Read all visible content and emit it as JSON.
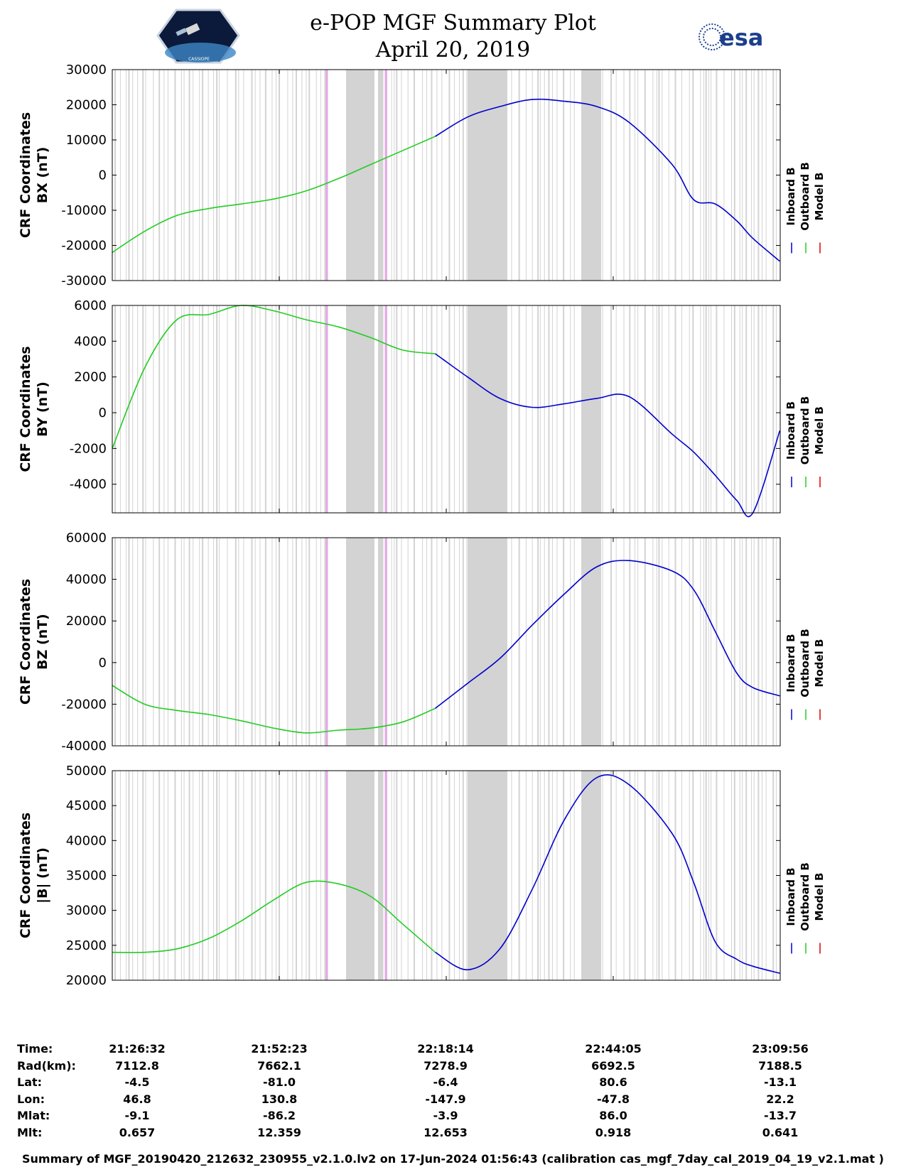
{
  "header": {
    "title_line1": "e-POP MGF Summary Plot",
    "title_line2": "April 20, 2019",
    "logo_left_text": "CASSIOPE",
    "logo_right_text": "esa"
  },
  "legend": [
    "Inboard B",
    "Outboard B",
    "Model B"
  ],
  "colors": {
    "inboard": "#0000cc",
    "outboard": "#22cc22",
    "model": "#dd0000",
    "bands": "#d3d3d3",
    "markers": "#e6a8e6"
  },
  "chart_data": [
    {
      "type": "line",
      "title": "",
      "ylabel_line1": "CRF Coordinates",
      "ylabel_line2": "BX (nT)",
      "xlabel": "Time",
      "xlim": [
        0,
        6204
      ],
      "ylim": [
        -30000,
        30000
      ],
      "yticks": [
        -30000,
        -20000,
        -10000,
        0,
        10000,
        20000,
        30000
      ],
      "ytick_labels": [
        "-30000",
        "-20000",
        "-10000",
        "0",
        "10000",
        "20000",
        "30000"
      ],
      "series": [
        {
          "name": "Outboard B",
          "x": [
            0,
            300,
            600,
            900,
            1200,
            1500,
            1800,
            2100,
            2400,
            2700,
            3000
          ],
          "values": [
            -22000,
            -16000,
            -11500,
            -9500,
            -8200,
            -6800,
            -4500,
            -1000,
            3000,
            7000,
            11000
          ]
        },
        {
          "name": "Inboard B",
          "x": [
            3000,
            3300,
            3600,
            3900,
            4200,
            4500,
            4800,
            5200,
            5400,
            5600,
            5800,
            5950,
            6200
          ],
          "values": [
            11000,
            16500,
            19500,
            21500,
            21000,
            19500,
            15000,
            3000,
            -7000,
            -8200,
            -13000,
            -18000,
            -24500
          ]
        }
      ]
    },
    {
      "type": "line",
      "title": "",
      "ylabel_line1": "CRF Coordinates",
      "ylabel_line2": "BY (nT)",
      "xlabel": "Time",
      "xlim": [
        0,
        6204
      ],
      "ylim": [
        -5600,
        6000
      ],
      "yticks": [
        -4000,
        -2000,
        0,
        2000,
        4000,
        6000
      ],
      "ytick_labels": [
        "-4000",
        "-2000",
        "0",
        "2000",
        "4000",
        "6000"
      ],
      "series": [
        {
          "name": "Outboard B",
          "x": [
            0,
            300,
            600,
            900,
            1200,
            1500,
            1800,
            2100,
            2400,
            2700,
            3000
          ],
          "values": [
            -2000,
            2500,
            5200,
            5500,
            6000,
            5700,
            5200,
            4800,
            4200,
            3500,
            3300
          ]
        },
        {
          "name": "Inboard B",
          "x": [
            3000,
            3300,
            3600,
            3900,
            4200,
            4500,
            4800,
            5200,
            5400,
            5600,
            5800,
            5950,
            6200
          ],
          "values": [
            3300,
            2000,
            800,
            300,
            500,
            800,
            900,
            -1200,
            -2200,
            -3500,
            -4900,
            -5600,
            -1000
          ]
        }
      ]
    },
    {
      "type": "line",
      "title": "",
      "ylabel_line1": "CRF Coordinates",
      "ylabel_line2": "BZ (nT)",
      "xlabel": "Time",
      "xlim": [
        0,
        6204
      ],
      "ylim": [
        -40000,
        60000
      ],
      "yticks": [
        -40000,
        -20000,
        0,
        20000,
        40000,
        60000
      ],
      "ytick_labels": [
        "-40000",
        "-20000",
        "0",
        "20000",
        "40000",
        "60000"
      ],
      "series": [
        {
          "name": "Outboard B",
          "x": [
            0,
            300,
            600,
            900,
            1200,
            1500,
            1800,
            2100,
            2400,
            2700,
            3000
          ],
          "values": [
            -11000,
            -20000,
            -23000,
            -25000,
            -28000,
            -31500,
            -33800,
            -32500,
            -31500,
            -28500,
            -22000
          ]
        },
        {
          "name": "Inboard B",
          "x": [
            3000,
            3300,
            3600,
            3900,
            4200,
            4500,
            4800,
            5200,
            5400,
            5600,
            5800,
            5950,
            6200
          ],
          "values": [
            -22000,
            -10000,
            2000,
            18000,
            33000,
            46000,
            49000,
            44000,
            35000,
            15000,
            -5000,
            -12000,
            -16000
          ]
        }
      ]
    },
    {
      "type": "line",
      "title": "",
      "ylabel_line1": "CRF Coordinates",
      "ylabel_line2": "|B| (nT)",
      "xlabel": "Time",
      "xlim": [
        0,
        6204
      ],
      "ylim": [
        20000,
        50000
      ],
      "yticks": [
        20000,
        25000,
        30000,
        35000,
        40000,
        45000,
        50000
      ],
      "ytick_labels": [
        "20000",
        "25000",
        "30000",
        "35000",
        "40000",
        "45000",
        "50000"
      ],
      "series": [
        {
          "name": "Outboard B",
          "x": [
            0,
            300,
            600,
            900,
            1200,
            1500,
            1800,
            2100,
            2400,
            2700,
            3000
          ],
          "values": [
            24000,
            24000,
            24500,
            26000,
            28500,
            31500,
            34000,
            33800,
            32000,
            28000,
            24000
          ]
        },
        {
          "name": "Inboard B",
          "x": [
            3000,
            3300,
            3600,
            3900,
            4200,
            4500,
            4800,
            5200,
            5400,
            5600,
            5800,
            5950,
            6200
          ],
          "values": [
            24000,
            21500,
            24500,
            33000,
            43000,
            49000,
            48000,
            41000,
            34000,
            25500,
            23000,
            22000,
            21000
          ]
        }
      ]
    }
  ],
  "ephemeris": {
    "labels": [
      "Time:",
      "Rad(km):",
      "Lat:",
      "Lon:",
      "Mlat:",
      "Mlt:"
    ],
    "columns": [
      [
        "21:26:32",
        "7112.8",
        "-4.5",
        "46.8",
        "-9.1",
        "0.657"
      ],
      [
        "21:52:23",
        "7662.1",
        "-81.0",
        "130.8",
        "-86.2",
        "12.359"
      ],
      [
        "22:18:14",
        "7278.9",
        "-6.4",
        "-147.9",
        "-3.9",
        "12.653"
      ],
      [
        "22:44:05",
        "6692.5",
        "80.6",
        "-47.8",
        "86.0",
        "0.918"
      ],
      [
        "23:09:56",
        "7188.5",
        "-13.1",
        "22.2",
        "-13.7",
        "0.641"
      ]
    ]
  },
  "footer": "Summary of MGF_20190420_212632_230955_v2.1.0.lv2 on 17-Jun-2024 01:56:43 (calibration cas_mgf_7day_cal_2019_04_19_v2.1.mat )"
}
